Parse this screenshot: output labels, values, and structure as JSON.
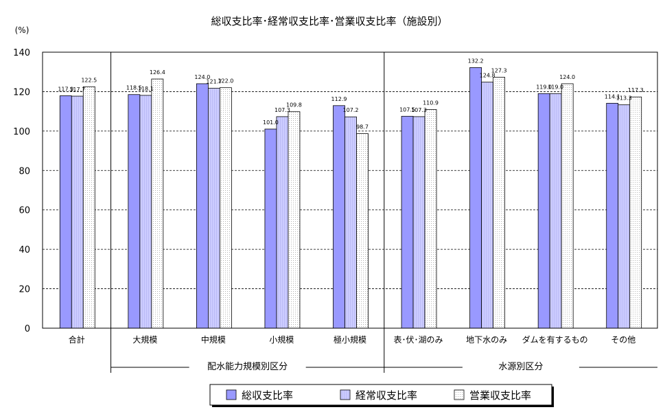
{
  "chart_data": {
    "type": "bar",
    "title": "総収支比率･経常収支比率･営業収支比率（施設別）",
    "ylabel": "(%)",
    "ylim": [
      0,
      140
    ],
    "yticks": [
      "0",
      "20",
      "40",
      "60",
      "80",
      "100",
      "120",
      "140"
    ],
    "grid": true,
    "legend_position": "bottom",
    "categories": [
      "合計",
      "大規模",
      "中規模",
      "小規模",
      "極小規模",
      "表･伏･湖のみ",
      "地下水のみ",
      "ダムを有するもの",
      "その他"
    ],
    "groups": [
      {
        "label": "配水能力規模別区分"
      },
      {
        "label": "水源別区分"
      }
    ],
    "series": [
      {
        "name": "総収支比率",
        "color": "#9999ff",
        "pattern": "solid",
        "values": [
          117.9,
          118.5,
          124.0,
          101.0,
          112.9,
          107.5,
          132.2,
          119.0,
          114.1
        ],
        "labels": [
          "117.9",
          "118.5",
          "124.0",
          "101.0",
          "112.9",
          "107.5",
          "132.2",
          "119.0",
          "114.1"
        ]
      },
      {
        "name": "経常収支比率",
        "color": "#ccccff",
        "pattern": "stripes",
        "values": [
          117.7,
          118.1,
          121.7,
          107.3,
          107.2,
          107.3,
          124.8,
          119.0,
          113.3
        ],
        "labels": [
          "117.7",
          "118.1",
          "121.7",
          "107.3",
          "107.2",
          "107.3",
          "124.8",
          "119.0",
          "113.3"
        ]
      },
      {
        "name": "営業収支比率",
        "color": "#ffffff",
        "pattern": "dots",
        "values": [
          122.5,
          126.4,
          122.0,
          109.8,
          98.7,
          110.9,
          127.3,
          124.0,
          117.3
        ],
        "labels": [
          "122.5",
          "126.4",
          "122.0",
          "109.8",
          "98.7",
          "110.9",
          "127.3",
          "124.0",
          "117.3"
        ]
      }
    ]
  }
}
